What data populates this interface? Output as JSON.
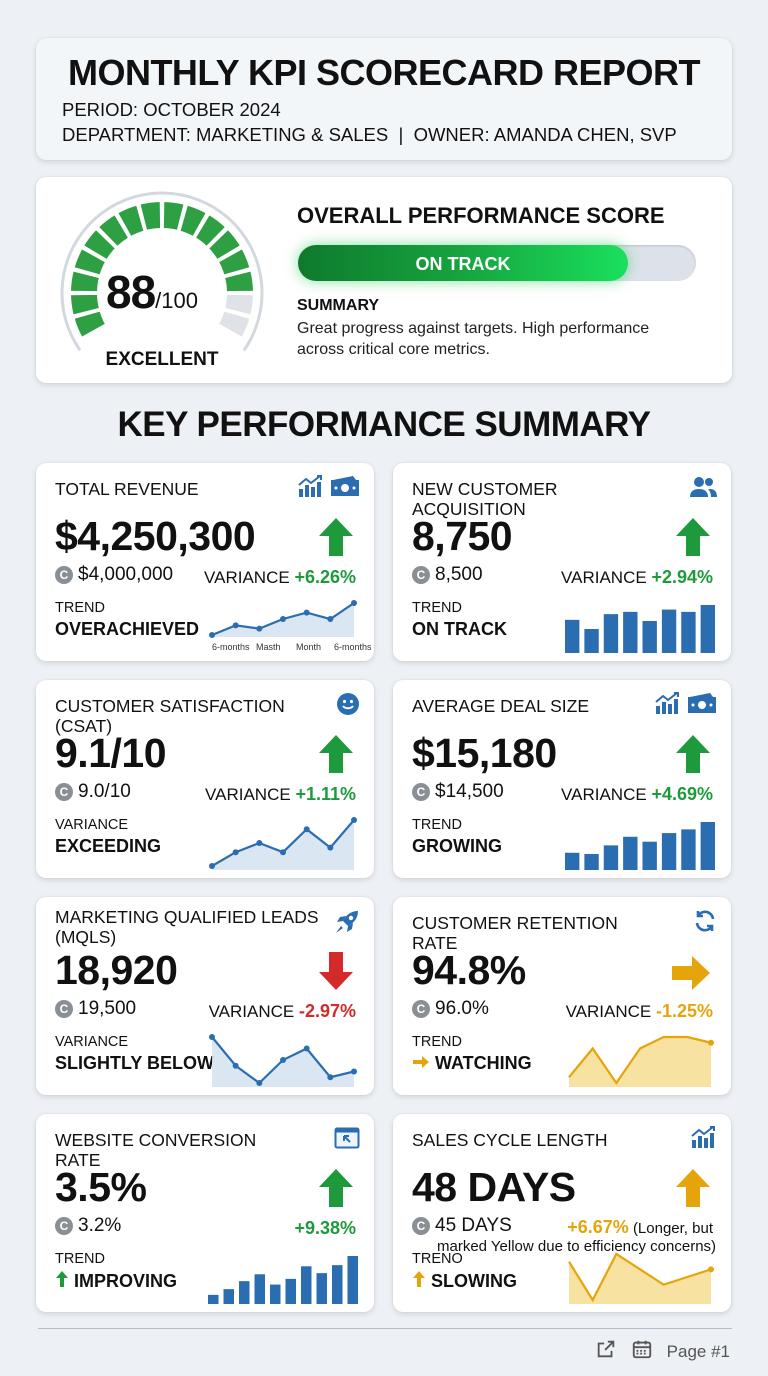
{
  "header": {
    "title": "MONTHLY KPI SCORECARD REPORT",
    "period": "PERIOD: OCTOBER 2024",
    "department_owner": "DEPARTMENT: MARKETING & SALES  |  OWNER: AMANDA CHEN, SVP"
  },
  "score": {
    "value": "88",
    "max": "/100",
    "rating": "EXCELLENT",
    "percent": 88,
    "title": "OVERALL PERFORMANCE SCORE",
    "status": "ON TRACK",
    "summary_title": "SUMMARY",
    "summary_text": "Great progress against targets. High performance across critical core metrics."
  },
  "section_title": "KEY PERFORMANCE SUMMARY",
  "colors": {
    "positive": "#1e9a3c",
    "negative": "#d42a2a",
    "warning": "#e5a50a",
    "chart_blue": "#2a6db0",
    "gauge_green": "#2ea043",
    "gauge_gray": "#dfe3e8"
  },
  "kpis": [
    {
      "title": "TOTAL REVENUE",
      "icons": [
        "growth-chart-icon",
        "cash-icon"
      ],
      "value": "$4,250,300",
      "target": "$4,000,000",
      "variance_label": "VARIANCE",
      "variance": "+6.26%",
      "direction": "up",
      "status_color": "positive",
      "trend_label": "TREND",
      "trend_value": "OVERACHIEVED",
      "chart_type": "line",
      "chart_values": [
        2,
        5,
        4,
        7,
        9,
        7,
        12
      ],
      "chart_axis": [
        "6-months",
        "Masth",
        "Month",
        "6-months"
      ]
    },
    {
      "title": "NEW CUSTOMER ACQUISITION",
      "icons": [
        "users-icon"
      ],
      "value": "8,750",
      "target": "8,500",
      "variance_label": "VARIANCE",
      "variance": "+2.94%",
      "direction": "up",
      "status_color": "positive",
      "trend_label": "TREND",
      "trend_value": "ON TRACK",
      "chart_type": "bar",
      "chart_values": [
        29,
        21,
        34,
        36,
        28,
        38,
        36,
        42
      ]
    },
    {
      "title": "CUSTOMER SATISFACTION (CSAT)",
      "icons": [
        "smiley-icon"
      ],
      "value": "9.1/10",
      "target": "9.0/10",
      "variance_label": "VARIANCE",
      "variance": "+1.11%",
      "direction": "up",
      "status_color": "positive",
      "trend_label": "VARIANCE",
      "trend_value": "EXCEEDING",
      "chart_type": "line",
      "chart_values": [
        2,
        5,
        7,
        5,
        10,
        6,
        12
      ]
    },
    {
      "title": "AVERAGE DEAL SIZE",
      "icons": [
        "growth-chart-icon",
        "cash-icon"
      ],
      "value": "$15,180",
      "target": "$14,500",
      "variance_label": "VARIANCE",
      "variance": "+4.69%",
      "direction": "up",
      "status_color": "positive",
      "trend_label": "TREND",
      "trend_value": "GROWING",
      "chart_type": "bar",
      "chart_values": [
        14,
        13,
        20,
        27,
        23,
        30,
        33,
        39
      ]
    },
    {
      "title": "MARKETING QUALIFIED LEADS (MQLS)",
      "icons": [
        "rocket-icon"
      ],
      "value": "18,920",
      "target": "19,500",
      "variance_label": "VARIANCE",
      "variance": "-2.97%",
      "direction": "down",
      "status_color": "negative",
      "trend_label": "VARIANCE",
      "trend_value": "SLIGHTLY BELOW",
      "chart_type": "line",
      "chart_values": [
        12,
        7,
        4,
        8,
        10,
        5,
        6
      ]
    },
    {
      "title": "CUSTOMER RETENTION RATE",
      "icons": [
        "refresh-icon"
      ],
      "value": "94.8%",
      "target": "96.0%",
      "variance_label": "VARIANCE",
      "variance": "-1.25%",
      "direction": "right",
      "status_color": "warning",
      "trend_label": "TREND",
      "trend_value": "WATCHING",
      "trend_icon": "right",
      "chart_type": "area-yellow",
      "chart_values": [
        4,
        9,
        3,
        9,
        11,
        11,
        10
      ]
    },
    {
      "title": "WEBSITE CONVERSION RATE",
      "icons": [
        "browser-click-icon"
      ],
      "value": "3.5%",
      "target": "3.2%",
      "variance_label": "",
      "variance": "+9.38%",
      "direction": "up",
      "status_color": "positive",
      "trend_label": "TREND",
      "trend_value": "IMPROVING",
      "trend_icon": "up",
      "chart_type": "bar",
      "chart_values": [
        8,
        13,
        20,
        26,
        17,
        22,
        33,
        27,
        34,
        42
      ]
    },
    {
      "title": "SALES CYCLE LENGTH",
      "icons": [
        "growth-chart-icon"
      ],
      "value": "48 DAYS",
      "target": "45 DAYS",
      "variance_label": "",
      "variance": "+6.67%",
      "variance_note": "(Longer, but",
      "note_line2": "marked Yellow due to efficiency concerns)",
      "direction": "up",
      "status_color": "warning",
      "trend_label": "TRENO",
      "trend_value": "SLOWING",
      "trend_icon": "up-yellow",
      "chart_type": "area-yellow",
      "chart_values": [
        8,
        3,
        9,
        7,
        5,
        6,
        7
      ]
    }
  ],
  "footer": {
    "page_label": "Page #1"
  }
}
